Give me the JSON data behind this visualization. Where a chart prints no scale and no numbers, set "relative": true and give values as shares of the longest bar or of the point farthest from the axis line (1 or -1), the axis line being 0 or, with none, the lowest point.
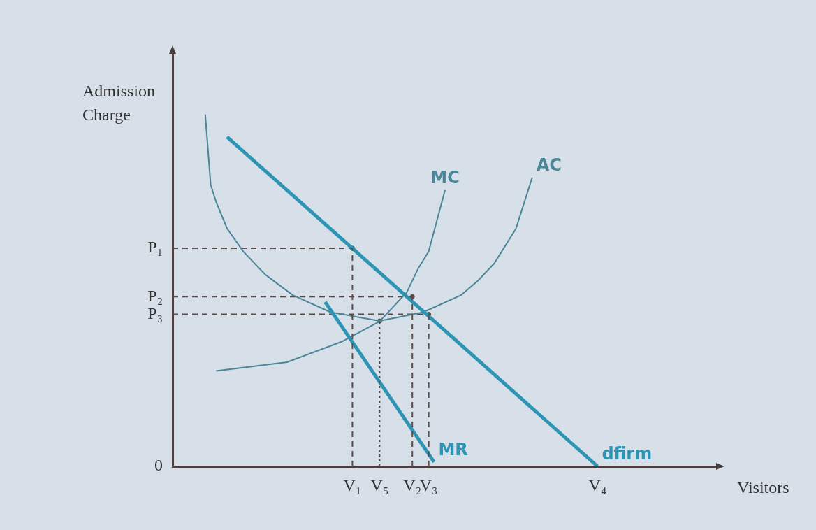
{
  "chart_data": {
    "type": "line",
    "xlabel": "Visitors",
    "ylabel": "Admission Charge",
    "relative": true,
    "legend": false,
    "categories": [
      null,
      null,
      null,
      null,
      null,
      null,
      null,
      null,
      null,
      null,
      null,
      null,
      null,
      null,
      null,
      null,
      null,
      null,
      null,
      null,
      null,
      null,
      null,
      null,
      null,
      null,
      null,
      null,
      null,
      null,
      null,
      null,
      null,
      "V₁",
      null,
      null,
      null,
      null,
      "V₅",
      null,
      null,
      null,
      null,
      null,
      "V₂",
      null,
      null,
      "V₃",
      null,
      null,
      null,
      null,
      null,
      null,
      null,
      null,
      null,
      null,
      null,
      null,
      null,
      null,
      null,
      null,
      null,
      null,
      null,
      null,
      null,
      null,
      null,
      null,
      null,
      null,
      null,
      null,
      null,
      null,
      "V₄",
      null,
      null,
      null,
      null,
      null,
      null,
      null,
      null,
      null,
      null,
      null,
      null,
      null,
      null,
      null,
      null,
      null,
      null,
      null,
      null,
      null,
      null
    ],
    "annotations": [
      "0"
    ],
    "series": [
      {
        "name": "dfirm",
        "color": "#2e94b4",
        "values": [
          null,
          null,
          null,
          null,
          null,
          null,
          null,
          null,
          null,
          null,
          0.936,
          null,
          null,
          null,
          null,
          null,
          null,
          null,
          null,
          null,
          null,
          null,
          null,
          null,
          null,
          null,
          null,
          null,
          null,
          null,
          null,
          null,
          null,
          null,
          null,
          null,
          null,
          null,
          null,
          null,
          null,
          null,
          null,
          null,
          null,
          null,
          null,
          null,
          null,
          null,
          null,
          null,
          null,
          null,
          null,
          null,
          null,
          null,
          null,
          null,
          null,
          null,
          null,
          null,
          null,
          null,
          null,
          null,
          null,
          null,
          null,
          null,
          null,
          null,
          null,
          null,
          null,
          null,
          0,
          null,
          null,
          null,
          null,
          null,
          null,
          null,
          null,
          null,
          null,
          null,
          null,
          null,
          null,
          null,
          null,
          null,
          null,
          null,
          null,
          null,
          null
        ]
      },
      {
        "name": "MR",
        "color": "#2e94b4",
        "values": [
          null,
          null,
          null,
          null,
          null,
          null,
          null,
          null,
          null,
          null,
          null,
          null,
          null,
          null,
          null,
          null,
          null,
          null,
          null,
          null,
          null,
          null,
          null,
          null,
          null,
          null,
          null,
          null,
          0.467,
          null,
          null,
          null,
          null,
          null,
          null,
          null,
          null,
          null,
          null,
          null,
          null,
          null,
          null,
          null,
          null,
          null,
          null,
          null,
          0.012,
          null,
          null,
          null,
          null,
          null,
          null,
          null,
          null,
          null,
          null,
          null,
          null,
          null,
          null,
          null,
          null,
          null,
          null,
          null,
          null,
          null,
          null,
          null,
          null,
          null,
          null,
          null,
          null,
          null,
          null,
          null,
          null,
          null,
          null,
          null,
          null,
          null,
          null,
          null,
          null,
          null,
          null,
          null,
          null,
          null,
          null,
          null,
          null,
          null,
          null,
          null,
          null
        ]
      },
      {
        "name": "AC",
        "color": "#4a8598",
        "values": [
          null,
          null,
          null,
          null,
          null,
          null,
          1,
          0.8,
          0.751,
          null,
          0.676,
          null,
          null,
          0.61,
          null,
          null,
          null,
          0.545,
          null,
          null,
          null,
          null,
          0.487,
          null,
          null,
          null,
          null,
          null,
          null,
          0.438,
          null,
          null,
          null,
          null,
          null,
          null,
          null,
          null,
          0.413,
          null,
          null,
          null,
          null,
          null,
          null,
          null,
          0.438,
          null,
          null,
          null,
          null,
          null,
          null,
          0.487,
          null,
          null,
          0.527,
          null,
          null,
          0.576,
          null,
          null,
          null,
          0.675,
          null,
          null,
          0.821,
          null,
          null,
          null,
          null,
          null,
          null,
          null,
          null,
          null,
          null,
          null,
          null,
          null,
          null,
          null,
          null,
          null,
          null,
          null,
          null,
          null,
          null,
          null,
          null,
          null,
          null,
          null,
          null,
          null,
          null,
          null,
          null,
          null,
          null
        ]
      },
      {
        "name": "MC",
        "color": "#4a8598",
        "values": [
          null,
          null,
          null,
          null,
          null,
          null,
          null,
          null,
          0.271,
          null,
          null,
          null,
          null,
          null,
          null,
          null,
          null,
          null,
          null,
          null,
          null,
          0.296,
          null,
          null,
          null,
          null,
          null,
          null,
          null,
          null,
          null,
          0.354,
          null,
          null,
          null,
          null,
          null,
          null,
          0.412,
          null,
          null,
          null,
          null,
          0.495,
          null,
          0.56,
          null,
          0.611,
          null,
          null,
          0.785,
          null,
          null,
          null,
          null,
          null,
          null,
          null,
          null,
          null,
          null,
          null,
          null,
          null,
          null,
          null,
          null,
          null,
          null,
          null,
          null,
          null,
          null,
          null,
          null,
          null,
          null,
          null,
          null,
          null,
          null,
          null,
          null,
          null,
          null,
          null,
          null,
          null,
          null,
          null,
          null,
          null,
          null,
          null,
          null,
          null,
          null,
          null,
          null,
          null,
          null
        ]
      },
      {
        "name": "P₁",
        "color": "#5a4a48",
        "line_style": "dashed",
        "values": [
          0.62,
          null,
          null,
          null,
          null,
          null,
          null,
          null,
          null,
          null,
          null,
          null,
          null,
          null,
          null,
          null,
          null,
          null,
          null,
          null,
          null,
          null,
          null,
          null,
          null,
          null,
          null,
          null,
          null,
          null,
          null,
          null,
          null,
          0.62,
          null,
          null,
          null,
          null,
          null,
          null,
          null,
          null,
          null,
          null,
          null,
          null,
          null,
          null,
          null,
          null,
          null,
          null,
          null,
          null,
          null,
          null,
          null,
          null,
          null,
          null,
          null,
          null,
          null,
          null,
          null,
          null,
          null,
          null,
          null,
          null,
          null,
          null,
          null,
          null,
          null,
          null,
          null,
          null,
          null,
          null,
          null,
          null,
          null,
          null,
          null,
          null,
          null,
          null,
          null,
          null,
          null,
          null,
          null,
          null,
          null,
          null,
          null,
          null,
          null,
          null,
          null
        ]
      },
      {
        "name": "P₂",
        "color": "#5a4a48",
        "line_style": "dashed",
        "values": [
          0.482,
          null,
          null,
          null,
          null,
          null,
          null,
          null,
          null,
          null,
          null,
          null,
          null,
          null,
          null,
          null,
          null,
          null,
          null,
          null,
          null,
          null,
          null,
          null,
          null,
          null,
          null,
          null,
          null,
          null,
          null,
          null,
          null,
          null,
          null,
          null,
          null,
          null,
          null,
          null,
          null,
          null,
          null,
          null,
          0.482,
          null,
          null,
          null,
          null,
          null,
          null,
          null,
          null,
          null,
          null,
          null,
          null,
          null,
          null,
          null,
          null,
          null,
          null,
          null,
          null,
          null,
          null,
          null,
          null,
          null,
          null,
          null,
          null,
          null,
          null,
          null,
          null,
          null,
          null,
          null,
          null,
          null,
          null,
          null,
          null,
          null,
          null,
          null,
          null,
          null,
          null,
          null,
          null,
          null,
          null,
          null,
          null,
          null,
          null,
          null,
          null
        ]
      },
      {
        "name": "P₃",
        "color": "#5a4a48",
        "line_style": "dashed",
        "values": [
          0.432,
          null,
          null,
          null,
          null,
          null,
          null,
          null,
          null,
          null,
          null,
          null,
          null,
          null,
          null,
          null,
          null,
          null,
          null,
          null,
          null,
          null,
          null,
          null,
          null,
          null,
          null,
          null,
          null,
          null,
          null,
          null,
          null,
          null,
          null,
          null,
          null,
          null,
          null,
          null,
          null,
          null,
          null,
          null,
          null,
          null,
          null,
          0.432,
          null,
          null,
          null,
          null,
          null,
          null,
          null,
          null,
          null,
          null,
          null,
          null,
          null,
          null,
          null,
          null,
          null,
          null,
          null,
          null,
          null,
          null,
          null,
          null,
          null,
          null,
          null,
          null,
          null,
          null,
          null,
          null,
          null,
          null,
          null,
          null,
          null,
          null,
          null,
          null,
          null,
          null,
          null,
          null,
          null,
          null,
          null,
          null,
          null,
          null,
          null,
          null,
          null
        ]
      },
      {
        "type": "lollipop",
        "color": "#5a4a48",
        "line_style": "dashed",
        "values": [
          null,
          null,
          null,
          null,
          null,
          null,
          null,
          null,
          null,
          null,
          null,
          null,
          null,
          null,
          null,
          null,
          null,
          null,
          null,
          null,
          null,
          null,
          null,
          null,
          null,
          null,
          null,
          null,
          null,
          null,
          null,
          null,
          null,
          0.62,
          null,
          null,
          null,
          null,
          null,
          null,
          null,
          null,
          null,
          null,
          0.482,
          null,
          null,
          0.432,
          null,
          null,
          null,
          null,
          null,
          null,
          null,
          null,
          null,
          null,
          null,
          null,
          null,
          null,
          null,
          null,
          null,
          null,
          null,
          null,
          null,
          null,
          null,
          null,
          null,
          null,
          null,
          null,
          null,
          null,
          null,
          null,
          null,
          null,
          null,
          null,
          null,
          null,
          null,
          null,
          null,
          null,
          null,
          null,
          null,
          null,
          null,
          null,
          null,
          null,
          null,
          null,
          null
        ]
      },
      {
        "type": "lollipop",
        "color": "#5a4a48",
        "line_style": "dotted",
        "values": [
          null,
          null,
          null,
          null,
          null,
          null,
          null,
          null,
          null,
          null,
          null,
          null,
          null,
          null,
          null,
          null,
          null,
          null,
          null,
          null,
          null,
          null,
          null,
          null,
          null,
          null,
          null,
          null,
          null,
          null,
          null,
          null,
          null,
          null,
          null,
          null,
          null,
          null,
          0.413,
          null,
          null,
          null,
          null,
          null,
          null,
          null,
          null,
          null,
          null,
          null,
          null,
          null,
          null,
          null,
          null,
          null,
          null,
          null,
          null,
          null,
          null,
          null,
          null,
          null,
          null,
          null,
          null,
          null,
          null,
          null,
          null,
          null,
          null,
          null,
          null,
          null,
          null,
          null,
          null,
          null,
          null,
          null,
          null,
          null,
          null,
          null,
          null,
          null,
          null,
          null,
          null,
          null,
          null,
          null,
          null,
          null,
          null,
          null,
          null,
          null,
          null
        ]
      }
    ]
  }
}
